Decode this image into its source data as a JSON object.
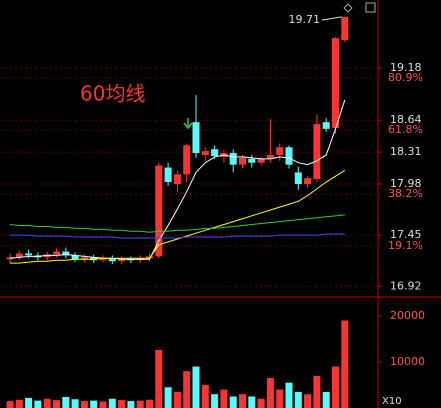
{
  "chart_data": {
    "type": "candlestick",
    "annotation": "60均线",
    "open": [
      17.2,
      17.22,
      17.26,
      17.24,
      17.22,
      17.25,
      17.28,
      17.24,
      17.2,
      17.22,
      17.19,
      17.21,
      17.18,
      17.2,
      17.19,
      17.21,
      17.23,
      18.15,
      17.98,
      18.08,
      18.62,
      18.28,
      18.34,
      18.26,
      18.3,
      18.18,
      18.24,
      18.2,
      18.24,
      18.28,
      18.36,
      18.1,
      17.98,
      18.03,
      18.62,
      18.56,
      19.47
    ],
    "high": [
      17.26,
      17.29,
      17.3,
      17.27,
      17.28,
      17.31,
      17.32,
      17.27,
      17.25,
      17.25,
      17.24,
      17.24,
      17.23,
      17.23,
      17.24,
      17.26,
      18.2,
      18.2,
      18.12,
      18.4,
      18.9,
      18.36,
      18.38,
      18.33,
      18.34,
      18.28,
      18.28,
      18.26,
      18.65,
      18.4,
      18.38,
      18.16,
      18.06,
      18.7,
      18.66,
      19.5,
      19.71
    ],
    "low": [
      17.16,
      17.19,
      17.21,
      17.19,
      17.19,
      17.22,
      17.21,
      17.17,
      17.17,
      17.16,
      17.17,
      17.15,
      17.15,
      17.16,
      17.16,
      17.18,
      17.21,
      17.96,
      17.9,
      18.0,
      18.25,
      18.22,
      18.24,
      18.2,
      18.1,
      18.14,
      18.15,
      18.17,
      18.2,
      18.22,
      18.14,
      17.92,
      17.94,
      18.0,
      18.52,
      18.5,
      19.45
    ],
    "close": [
      17.22,
      17.26,
      17.24,
      17.22,
      17.25,
      17.28,
      17.24,
      17.2,
      17.22,
      17.19,
      17.21,
      17.18,
      17.2,
      17.19,
      17.21,
      17.23,
      18.17,
      18.0,
      18.08,
      18.38,
      18.3,
      18.32,
      18.27,
      18.3,
      18.18,
      18.25,
      18.2,
      18.24,
      18.28,
      18.36,
      18.18,
      17.98,
      18.04,
      18.6,
      18.55,
      19.49,
      19.71
    ],
    "volume": [
      1500,
      1800,
      2200,
      1600,
      2000,
      1700,
      2400,
      1900,
      1500,
      1600,
      1400,
      2000,
      1700,
      1500,
      1600,
      1800,
      12600,
      4500,
      3500,
      8000,
      9000,
      5000,
      3000,
      4000,
      2500,
      3000,
      2500,
      2000,
      6500,
      4000,
      5500,
      3500,
      3000,
      7000,
      3500,
      9000,
      19000
    ],
    "up_color": "#ff3232",
    "down_color": "#54fcfc",
    "lines": [
      {
        "color": "#ffffff",
        "values": [
          17.21,
          17.22,
          17.23,
          17.23,
          17.24,
          17.24,
          17.25,
          17.24,
          17.23,
          17.22,
          17.21,
          17.21,
          17.2,
          17.2,
          17.2,
          17.2,
          17.39,
          17.55,
          17.72,
          17.9,
          18.1,
          18.2,
          18.26,
          18.28,
          18.26,
          18.26,
          18.25,
          18.24,
          18.24,
          18.26,
          18.25,
          18.2,
          18.18,
          18.22,
          18.28,
          18.55,
          18.85
        ]
      },
      {
        "color": "#ffff00",
        "values": [
          17.16,
          17.16,
          17.17,
          17.18,
          17.18,
          17.19,
          17.19,
          17.2,
          17.2,
          17.2,
          17.21,
          17.21,
          17.21,
          17.21,
          17.21,
          17.21,
          17.35,
          17.38,
          17.41,
          17.44,
          17.47,
          17.5,
          17.53,
          17.56,
          17.59,
          17.62,
          17.65,
          17.68,
          17.71,
          17.74,
          17.77,
          17.8,
          17.86,
          17.93,
          18.0,
          18.06,
          18.12
        ]
      },
      {
        "color": "#2ecc40",
        "values": [
          17.56,
          17.55,
          17.55,
          17.54,
          17.54,
          17.53,
          17.53,
          17.52,
          17.52,
          17.51,
          17.51,
          17.5,
          17.5,
          17.49,
          17.49,
          17.48,
          17.49,
          17.49,
          17.5,
          17.5,
          17.51,
          17.52,
          17.52,
          17.53,
          17.54,
          17.55,
          17.56,
          17.57,
          17.58,
          17.59,
          17.6,
          17.61,
          17.62,
          17.63,
          17.64,
          17.65,
          17.66
        ]
      },
      {
        "color": "#3a4cff",
        "values": [
          17.45,
          17.45,
          17.45,
          17.44,
          17.44,
          17.44,
          17.44,
          17.43,
          17.43,
          17.43,
          17.43,
          17.43,
          17.42,
          17.42,
          17.42,
          17.42,
          17.42,
          17.42,
          17.42,
          17.43,
          17.43,
          17.43,
          17.43,
          17.43,
          17.44,
          17.44,
          17.44,
          17.44,
          17.44,
          17.45,
          17.45,
          17.45,
          17.45,
          17.45,
          17.46,
          17.46,
          17.46
        ]
      }
    ],
    "ylim": [
      16.83,
      19.885
    ],
    "yticks": [
      19.18,
      18.64,
      18.31,
      17.98,
      17.45,
      16.92
    ],
    "y2lim": [
      1.1,
      109.6
    ],
    "y2ticks": [
      {
        "value": 80.9,
        "label": "80.9%"
      },
      {
        "value": 61.8,
        "label": "61.8%"
      },
      {
        "value": 38.2,
        "label": "38.2%"
      },
      {
        "value": 19.1,
        "label": "19.1%"
      }
    ],
    "vlim": [
      0,
      24100
    ],
    "vticks": [
      20000,
      10000
    ],
    "volume_unit": "X10"
  }
}
